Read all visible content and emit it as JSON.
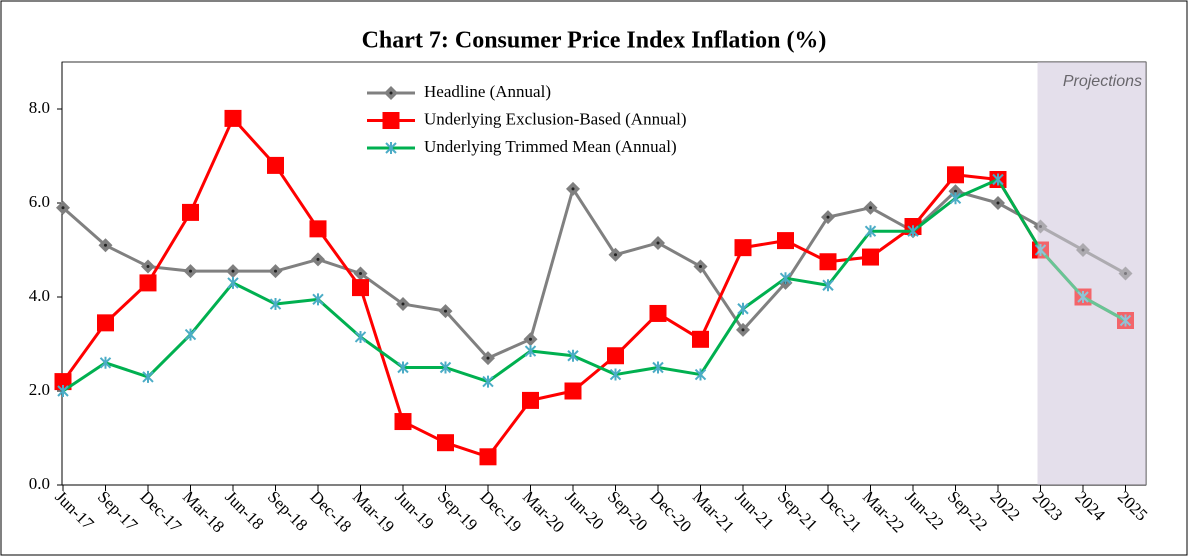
{
  "chart_data": {
    "type": "line",
    "title": "Chart 7: Consumer Price Index Inflation (%)",
    "categories": [
      "Jun-17",
      "Sep-17",
      "Dec-17",
      "Mar-18",
      "Jun-18",
      "Sep-18",
      "Dec-18",
      "Mar-19",
      "Jun-19",
      "Sep-19",
      "Dec-19",
      "Mar-20",
      "Jun-20",
      "Sep-20",
      "Dec-20",
      "Mar-21",
      "Jun-21",
      "Sep-21",
      "Dec-21",
      "Mar-22",
      "Jun-22",
      "Sep-22",
      "2022",
      "2023",
      "2024",
      "2025"
    ],
    "series": [
      {
        "name": "Headline (Annual)",
        "color": "#808080",
        "marker": "diamond",
        "marker_color": "#7f7f7f",
        "values": [
          5.9,
          5.1,
          4.65,
          4.55,
          4.55,
          4.55,
          4.8,
          4.5,
          3.85,
          3.7,
          2.7,
          3.1,
          6.3,
          4.9,
          5.15,
          4.65,
          3.3,
          4.3,
          5.7,
          5.9,
          5.4,
          6.25,
          6.0,
          5.5,
          5.0,
          4.5
        ]
      },
      {
        "name": "Underlying Exclusion-Based (Annual)",
        "color": "#ff0000",
        "marker": "square",
        "marker_color": "#ff0000",
        "values": [
          2.2,
          3.45,
          4.3,
          5.8,
          7.8,
          6.8,
          5.45,
          4.2,
          1.35,
          0.9,
          0.6,
          1.8,
          2.0,
          2.75,
          3.65,
          3.1,
          5.05,
          5.2,
          4.75,
          4.85,
          5.5,
          6.6,
          6.5,
          5.0,
          4.0,
          3.5
        ]
      },
      {
        "name": "Underlying Trimmed Mean (Annual)",
        "color": "#00b050",
        "marker": "asterisk",
        "marker_color": "#4bacc6",
        "values": [
          2.0,
          2.6,
          2.3,
          3.2,
          4.3,
          3.85,
          3.95,
          3.15,
          2.5,
          2.5,
          2.2,
          2.85,
          2.75,
          2.35,
          2.5,
          2.35,
          3.75,
          4.4,
          4.25,
          5.4,
          5.4,
          6.1,
          6.5,
          5.0,
          4.0,
          3.5
        ]
      }
    ],
    "ylim": [
      0,
      9
    ],
    "yticks": [
      {
        "value": 0,
        "label": "0.0"
      },
      {
        "value": 2,
        "label": "2.0"
      },
      {
        "value": 4,
        "label": "4.0"
      },
      {
        "value": 6,
        "label": "6.0"
      },
      {
        "value": 8,
        "label": "8.0"
      }
    ],
    "grid": false,
    "projections": {
      "label": "Projections",
      "from": "2023",
      "color": "#e4dfec"
    }
  }
}
